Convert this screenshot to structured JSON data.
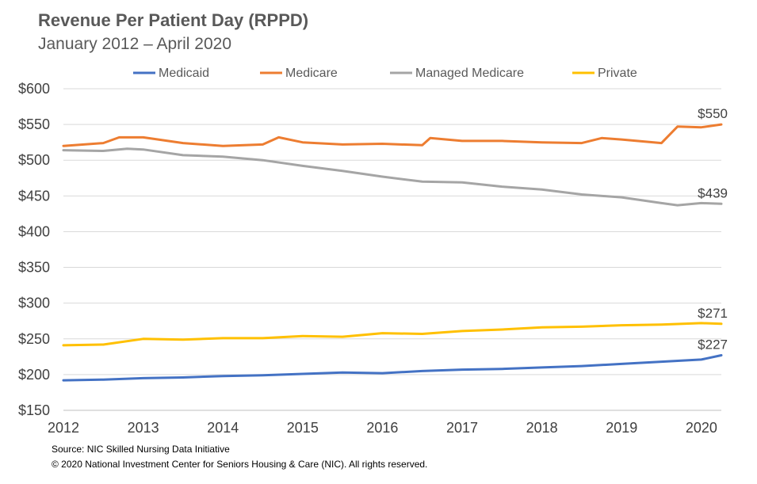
{
  "chart_data": {
    "type": "line",
    "title": "Revenue Per Patient Day (RPPD)",
    "subtitle": "January  2012 – April 2020",
    "xlabel": "",
    "ylabel": "",
    "ylim": [
      150,
      600
    ],
    "xlim": [
      2012.0,
      2020.25
    ],
    "y_ticks": [
      150,
      200,
      250,
      300,
      350,
      400,
      450,
      500,
      550,
      600
    ],
    "y_tick_labels": [
      "$150",
      "$200",
      "$250",
      "$300",
      "$350",
      "$400",
      "$450",
      "$500",
      "$550",
      "$600"
    ],
    "x_ticks": [
      2012,
      2013,
      2014,
      2015,
      2016,
      2017,
      2018,
      2019,
      2020
    ],
    "x_tick_labels": [
      "2012",
      "2013",
      "2014",
      "2015",
      "2016",
      "2017",
      "2018",
      "2019",
      "2020"
    ],
    "grid": "horizontal",
    "legend_position": "top",
    "series": [
      {
        "name": "Medicaid",
        "color": "#4472c4",
        "end_label": "$227",
        "points": [
          [
            2012.0,
            192
          ],
          [
            2012.5,
            193
          ],
          [
            2013.0,
            195
          ],
          [
            2013.5,
            196
          ],
          [
            2014.0,
            198
          ],
          [
            2014.5,
            199
          ],
          [
            2015.0,
            201
          ],
          [
            2015.5,
            203
          ],
          [
            2016.0,
            202
          ],
          [
            2016.5,
            205
          ],
          [
            2017.0,
            207
          ],
          [
            2017.5,
            208
          ],
          [
            2018.0,
            210
          ],
          [
            2018.5,
            212
          ],
          [
            2019.0,
            215
          ],
          [
            2019.5,
            218
          ],
          [
            2020.0,
            221
          ],
          [
            2020.25,
            227
          ]
        ]
      },
      {
        "name": "Medicare",
        "color": "#ed7d31",
        "end_label": "$550",
        "points": [
          [
            2012.0,
            520
          ],
          [
            2012.5,
            524
          ],
          [
            2012.7,
            532
          ],
          [
            2013.0,
            532
          ],
          [
            2013.5,
            524
          ],
          [
            2014.0,
            520
          ],
          [
            2014.5,
            522
          ],
          [
            2014.7,
            532
          ],
          [
            2015.0,
            525
          ],
          [
            2015.5,
            522
          ],
          [
            2016.0,
            523
          ],
          [
            2016.5,
            521
          ],
          [
            2016.6,
            531
          ],
          [
            2017.0,
            527
          ],
          [
            2017.5,
            527
          ],
          [
            2018.0,
            525
          ],
          [
            2018.5,
            524
          ],
          [
            2018.75,
            531
          ],
          [
            2019.0,
            529
          ],
          [
            2019.5,
            524
          ],
          [
            2019.7,
            547
          ],
          [
            2020.0,
            546
          ],
          [
            2020.25,
            550
          ]
        ]
      },
      {
        "name": "Managed Medicare",
        "color": "#a5a5a5",
        "end_label": "$439",
        "points": [
          [
            2012.0,
            514
          ],
          [
            2012.5,
            513
          ],
          [
            2012.8,
            516
          ],
          [
            2013.0,
            515
          ],
          [
            2013.5,
            507
          ],
          [
            2014.0,
            505
          ],
          [
            2014.5,
            500
          ],
          [
            2015.0,
            492
          ],
          [
            2015.5,
            485
          ],
          [
            2016.0,
            477
          ],
          [
            2016.5,
            470
          ],
          [
            2017.0,
            469
          ],
          [
            2017.5,
            463
          ],
          [
            2018.0,
            459
          ],
          [
            2018.5,
            452
          ],
          [
            2019.0,
            448
          ],
          [
            2019.5,
            440
          ],
          [
            2019.7,
            437
          ],
          [
            2020.0,
            440
          ],
          [
            2020.25,
            439
          ]
        ]
      },
      {
        "name": "Private",
        "color": "#ffc000",
        "end_label": "$271",
        "points": [
          [
            2012.0,
            241
          ],
          [
            2012.5,
            242
          ],
          [
            2013.0,
            250
          ],
          [
            2013.5,
            249
          ],
          [
            2014.0,
            251
          ],
          [
            2014.5,
            251
          ],
          [
            2015.0,
            254
          ],
          [
            2015.5,
            253
          ],
          [
            2016.0,
            258
          ],
          [
            2016.5,
            257
          ],
          [
            2017.0,
            261
          ],
          [
            2017.5,
            263
          ],
          [
            2018.0,
            266
          ],
          [
            2018.5,
            267
          ],
          [
            2019.0,
            269
          ],
          [
            2019.5,
            270
          ],
          [
            2020.0,
            272
          ],
          [
            2020.25,
            271
          ]
        ]
      }
    ]
  },
  "footer": {
    "source": "Source: NIC Skilled Nursing Data Initiative",
    "copyright": "© 2020 National Investment Center for Seniors Housing & Care (NIC).  All rights reserved."
  }
}
